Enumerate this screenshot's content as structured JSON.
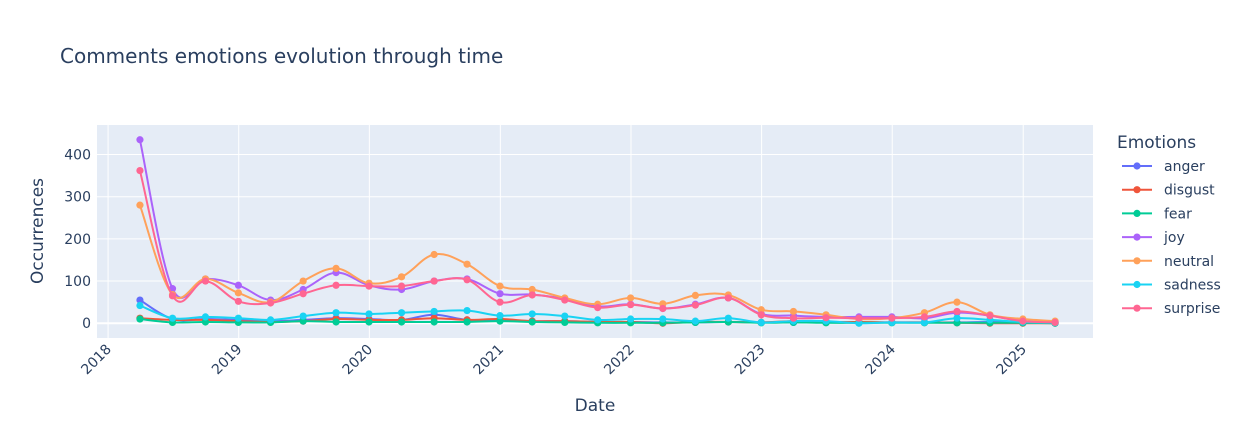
{
  "chart_data": {
    "type": "line",
    "title": "Comments emotions evolution through time",
    "xlabel": "Date",
    "ylabel": "Occurrences",
    "x_ticks": [
      "2018",
      "2019",
      "2020",
      "2021",
      "2022",
      "2023",
      "2024",
      "2025"
    ],
    "y_ticks": [
      0,
      100,
      200,
      300,
      400
    ],
    "xlim": [
      "2017-12-01",
      "2025-07-15"
    ],
    "ylim": [
      -35,
      470
    ],
    "grid": true,
    "legend_title": "Emotions",
    "legend_position": "right",
    "x": [
      "2018-03-31",
      "2018-06-30",
      "2018-09-30",
      "2018-12-31",
      "2019-03-31",
      "2019-06-30",
      "2019-09-30",
      "2019-12-31",
      "2020-03-31",
      "2020-06-30",
      "2020-09-30",
      "2020-12-31",
      "2021-03-31",
      "2021-06-30",
      "2021-09-30",
      "2021-12-31",
      "2022-03-31",
      "2022-06-30",
      "2022-09-30",
      "2022-12-31",
      "2023-03-31",
      "2023-06-30",
      "2023-09-30",
      "2023-12-31",
      "2024-03-31",
      "2024-06-30",
      "2024-09-30",
      "2024-12-31",
      "2025-03-31"
    ],
    "series": [
      {
        "name": "anger",
        "color": "#636efa",
        "values": [
          55,
          10,
          10,
          8,
          5,
          8,
          12,
          10,
          8,
          20,
          8,
          8,
          5,
          5,
          3,
          3,
          2,
          2,
          3,
          2,
          2,
          3,
          2,
          2,
          2,
          2,
          3,
          2,
          1
        ]
      },
      {
        "name": "disgust",
        "color": "#ef553b",
        "values": [
          12,
          8,
          8,
          5,
          3,
          5,
          10,
          8,
          8,
          12,
          8,
          10,
          5,
          5,
          3,
          3,
          0,
          3,
          3,
          2,
          5,
          3,
          3,
          2,
          2,
          1,
          0,
          0,
          0
        ]
      },
      {
        "name": "fear",
        "color": "#00cc96",
        "values": [
          10,
          2,
          3,
          2,
          2,
          5,
          3,
          3,
          3,
          3,
          3,
          5,
          3,
          2,
          1,
          1,
          1,
          2,
          3,
          1,
          2,
          1,
          1,
          1,
          1,
          1,
          1,
          1,
          0
        ]
      },
      {
        "name": "joy",
        "color": "#ab63fa",
        "values": [
          435,
          82,
          105,
          90,
          55,
          80,
          120,
          90,
          80,
          100,
          105,
          70,
          68,
          58,
          40,
          45,
          35,
          45,
          60,
          22,
          18,
          15,
          15,
          15,
          12,
          25,
          18,
          5,
          3
        ]
      },
      {
        "name": "neutral",
        "color": "#ffa15a",
        "values": [
          280,
          68,
          105,
          72,
          50,
          100,
          130,
          95,
          110,
          163,
          140,
          88,
          80,
          60,
          45,
          60,
          46,
          66,
          67,
          32,
          28,
          20,
          10,
          12,
          25,
          50,
          20,
          10,
          5
        ]
      },
      {
        "name": "sadness",
        "color": "#19d3f3",
        "values": [
          42,
          12,
          15,
          12,
          8,
          17,
          25,
          22,
          25,
          28,
          30,
          18,
          22,
          17,
          8,
          10,
          10,
          5,
          12,
          2,
          5,
          5,
          0,
          2,
          2,
          12,
          8,
          3,
          1
        ]
      },
      {
        "name": "surprise",
        "color": "#ff6692",
        "values": [
          362,
          65,
          100,
          52,
          48,
          70,
          90,
          88,
          88,
          100,
          103,
          50,
          67,
          55,
          37,
          44,
          35,
          43,
          60,
          20,
          12,
          13,
          12,
          12,
          15,
          28,
          18,
          5,
          2
        ]
      }
    ]
  }
}
